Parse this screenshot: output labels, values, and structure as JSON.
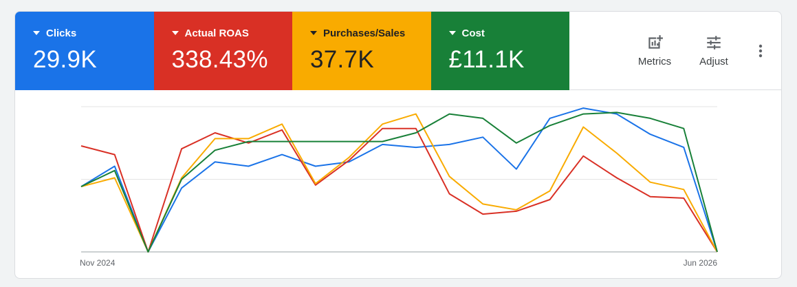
{
  "metrics": [
    {
      "label": "Clicks",
      "value": "29.9K",
      "color": "#1a73e8",
      "text_color": "#ffffff"
    },
    {
      "label": "Actual ROAS",
      "value": "338.43%",
      "color": "#d93025",
      "text_color": "#ffffff"
    },
    {
      "label": "Purchases/Sales",
      "value": "37.7K",
      "color": "#f9ab00",
      "text_color": "#202124"
    },
    {
      "label": "Cost",
      "value": "£11.1K",
      "color": "#188038",
      "text_color": "#ffffff"
    }
  ],
  "toolbar": {
    "metrics_label": "Metrics",
    "adjust_label": "Adjust",
    "metrics_icon": "add-chart-icon",
    "adjust_icon": "tune-icon",
    "more_icon": "more-vert-icon"
  },
  "chart_data": {
    "type": "line",
    "x_start_label": "Nov 2024",
    "x_end_label": "Jun 2026",
    "grid": true,
    "y_normalized": true,
    "series": [
      {
        "name": "Clicks",
        "color": "#1a73e8",
        "values": [
          0.45,
          0.59,
          0.0,
          0.44,
          0.62,
          0.59,
          0.67,
          0.59,
          0.62,
          0.74,
          0.72,
          0.74,
          0.79,
          0.57,
          0.92,
          0.99,
          0.95,
          0.81,
          0.72,
          0.0
        ]
      },
      {
        "name": "Actual ROAS",
        "color": "#d93025",
        "values": [
          0.73,
          0.67,
          0.0,
          0.71,
          0.82,
          0.75,
          0.84,
          0.46,
          0.63,
          0.85,
          0.85,
          0.4,
          0.26,
          0.28,
          0.36,
          0.66,
          0.51,
          0.38,
          0.37,
          0.0
        ]
      },
      {
        "name": "Purchases/Sales",
        "color": "#f9ab00",
        "values": [
          0.45,
          0.51,
          0.0,
          0.51,
          0.78,
          0.78,
          0.88,
          0.47,
          0.65,
          0.88,
          0.95,
          0.52,
          0.33,
          0.29,
          0.42,
          0.86,
          0.68,
          0.48,
          0.43,
          0.0
        ]
      },
      {
        "name": "Cost",
        "color": "#188038",
        "values": [
          0.45,
          0.56,
          0.0,
          0.5,
          0.7,
          0.76,
          0.76,
          0.76,
          0.76,
          0.76,
          0.82,
          0.95,
          0.92,
          0.75,
          0.87,
          0.95,
          0.96,
          0.92,
          0.85,
          0.0
        ]
      }
    ]
  }
}
